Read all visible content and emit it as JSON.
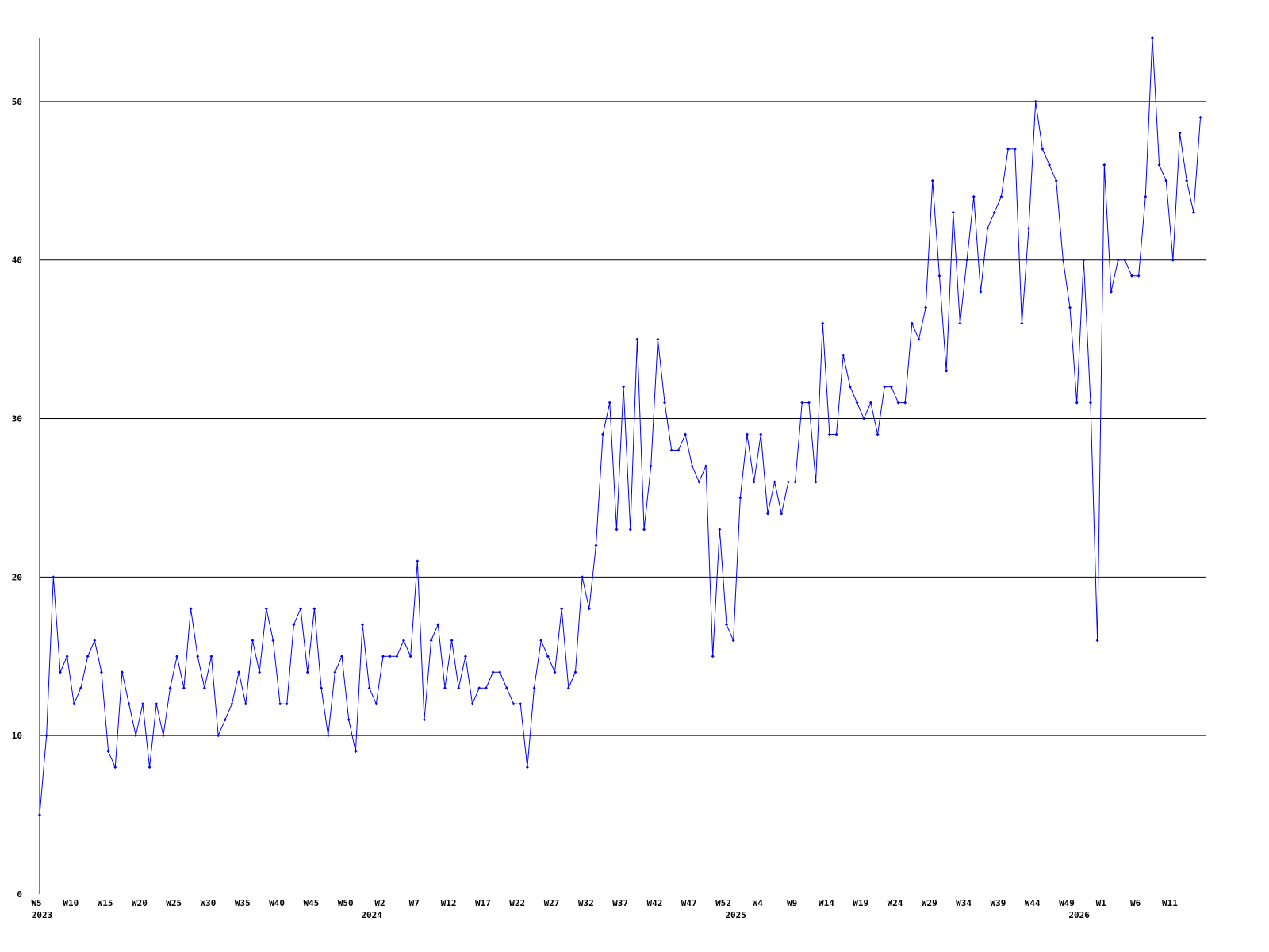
{
  "chart_data": {
    "type": "line",
    "color": "#0000ff",
    "grid": true,
    "ylim": [
      0,
      54
    ],
    "yticks": [
      0,
      10,
      20,
      30,
      40,
      50
    ],
    "categories": [
      "W5",
      null,
      null,
      null,
      null,
      "W10",
      null,
      null,
      null,
      null,
      "W15",
      null,
      null,
      null,
      null,
      "W20",
      null,
      null,
      null,
      null,
      "W25",
      null,
      null,
      null,
      null,
      "W30",
      null,
      null,
      null,
      null,
      "W35",
      null,
      null,
      null,
      null,
      "W40",
      null,
      null,
      null,
      null,
      "W45",
      null,
      null,
      null,
      null,
      "W50",
      null,
      null,
      null,
      null,
      "W2",
      null,
      null,
      null,
      null,
      "W7",
      null,
      null,
      null,
      null,
      "W12",
      null,
      null,
      null,
      null,
      "W17",
      null,
      null,
      null,
      null,
      "W22",
      null,
      null,
      null,
      null,
      "W27",
      null,
      null,
      null,
      null,
      "W32",
      null,
      null,
      null,
      null,
      "W37",
      null,
      null,
      null,
      null,
      "W42",
      null,
      null,
      null,
      null,
      "W47",
      null,
      null,
      null,
      null,
      "W52",
      null,
      null,
      null,
      null,
      "W4",
      null,
      null,
      null,
      null,
      "W9",
      null,
      null,
      null,
      null,
      "W14",
      null,
      null,
      null,
      null,
      "W19",
      null,
      null,
      null,
      null,
      "W24",
      null,
      null,
      null,
      null,
      "W29",
      null,
      null,
      null,
      null,
      "W34",
      null,
      null,
      null,
      null,
      "W39",
      null,
      null,
      null,
      null,
      "W44",
      null,
      null,
      null,
      null,
      "W49",
      null,
      null,
      null,
      null,
      "W1",
      null,
      null,
      null,
      null,
      "W6",
      null,
      null,
      null,
      null,
      "W11",
      null,
      null,
      null,
      null
    ],
    "years": [
      "2023",
      null,
      null,
      null,
      null,
      null,
      null,
      null,
      null,
      null,
      null,
      null,
      null,
      null,
      null,
      null,
      null,
      null,
      null,
      null,
      null,
      null,
      null,
      null,
      null,
      null,
      null,
      null,
      null,
      null,
      null,
      null,
      null,
      null,
      null,
      null,
      null,
      null,
      null,
      null,
      null,
      null,
      null,
      null,
      null,
      null,
      null,
      null,
      "2024",
      null,
      null,
      null,
      null,
      null,
      null,
      null,
      null,
      null,
      null,
      null,
      null,
      null,
      null,
      null,
      null,
      null,
      null,
      null,
      null,
      null,
      null,
      null,
      null,
      null,
      null,
      null,
      null,
      null,
      null,
      null,
      null,
      null,
      null,
      null,
      null,
      null,
      null,
      null,
      null,
      null,
      null,
      null,
      null,
      null,
      null,
      null,
      null,
      null,
      null,
      null,
      null,
      "2025",
      null,
      null,
      null,
      null,
      null,
      null,
      null,
      null,
      null,
      null,
      null,
      null,
      null,
      null,
      null,
      null,
      null,
      null,
      null,
      null,
      null,
      null,
      null,
      null,
      null,
      null,
      null,
      null,
      null,
      null,
      null,
      null,
      null,
      null,
      null,
      null,
      null,
      null,
      null,
      null,
      null,
      null,
      null,
      null,
      null,
      null,
      null,
      null,
      null,
      "2026",
      null,
      null,
      null,
      null,
      null,
      null,
      null,
      null,
      null,
      null,
      null,
      null,
      null,
      null
    ],
    "values": [
      5,
      10,
      20,
      14,
      15,
      12,
      13,
      15,
      16,
      14,
      9,
      8,
      14,
      12,
      10,
      12,
      8,
      12,
      10,
      13,
      15,
      13,
      18,
      15,
      13,
      15,
      10,
      11,
      12,
      14,
      12,
      16,
      14,
      18,
      16,
      12,
      12,
      17,
      18,
      14,
      18,
      13,
      10,
      14,
      15,
      11,
      9,
      17,
      13,
      12,
      15,
      15,
      15,
      16,
      15,
      21,
      11,
      16,
      17,
      13,
      16,
      13,
      15,
      12,
      13,
      13,
      14,
      14,
      13,
      12,
      12,
      8,
      13,
      16,
      15,
      14,
      18,
      13,
      14,
      20,
      18,
      22,
      29,
      31,
      23,
      32,
      23,
      35,
      23,
      27,
      35,
      31,
      28,
      28,
      29,
      27,
      26,
      27,
      15,
      23,
      17,
      16,
      25,
      29,
      26,
      29,
      24,
      26,
      24,
      26,
      26,
      31,
      31,
      26,
      36,
      29,
      29,
      34,
      32,
      31,
      30,
      31,
      29,
      32,
      32,
      31,
      31,
      36,
      35,
      37,
      45,
      39,
      33,
      43,
      36,
      40,
      44,
      38,
      42,
      43,
      44,
      47,
      47,
      36,
      42,
      50,
      47,
      46,
      45,
      40,
      37,
      31,
      40,
      31,
      16,
      46,
      38,
      40,
      40,
      39,
      39,
      44,
      54,
      46,
      45,
      40,
      48,
      45,
      43,
      49
    ]
  }
}
